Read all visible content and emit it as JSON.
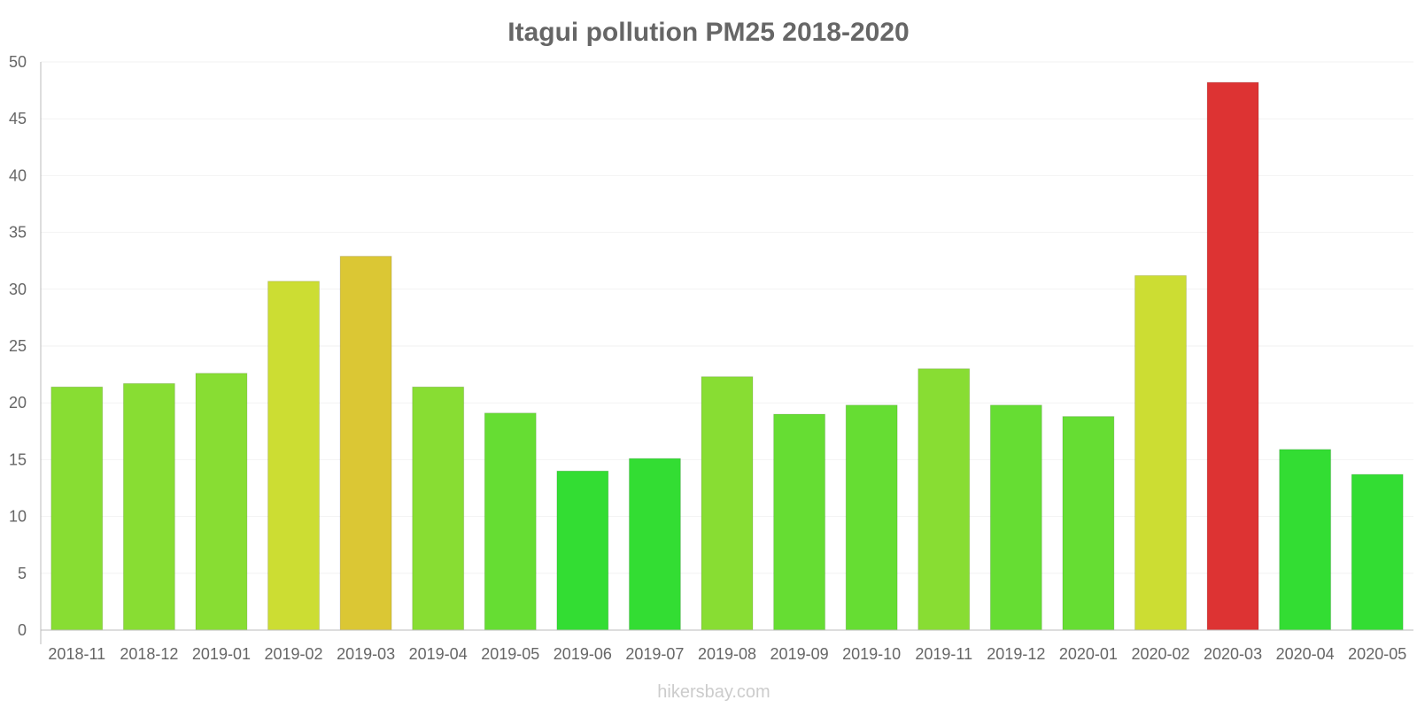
{
  "chart_data": {
    "type": "bar",
    "title": "Itagui pollution PM25 2018-2020",
    "xlabel": "",
    "ylabel": "",
    "ylim": [
      0,
      50
    ],
    "yticks": [
      0,
      5,
      10,
      15,
      20,
      25,
      30,
      35,
      40,
      45,
      50
    ],
    "grid": true,
    "categories": [
      "2018-11",
      "2018-12",
      "2019-01",
      "2019-02",
      "2019-03",
      "2019-04",
      "2019-05",
      "2019-06",
      "2019-07",
      "2019-08",
      "2019-09",
      "2019-10",
      "2019-11",
      "2019-12",
      "2020-01",
      "2020-02",
      "2020-03",
      "2020-04",
      "2020-05"
    ],
    "values": [
      21.4,
      21.7,
      22.6,
      30.7,
      32.9,
      21.4,
      19.1,
      14.0,
      15.1,
      22.3,
      19.0,
      19.8,
      23.0,
      19.8,
      18.8,
      31.2,
      48.2,
      15.9,
      13.7
    ],
    "colors": [
      "#88dd33",
      "#88dd33",
      "#88dd33",
      "#ccdd33",
      "#dbc734",
      "#88dd33",
      "#66dd33",
      "#33dd33",
      "#33dd33",
      "#88dd33",
      "#66dd33",
      "#66dd33",
      "#88dd33",
      "#66dd33",
      "#66dd33",
      "#ccdd33",
      "#dd3333",
      "#33dd33",
      "#33dd33"
    ],
    "watermark": "hikersbay.com"
  }
}
